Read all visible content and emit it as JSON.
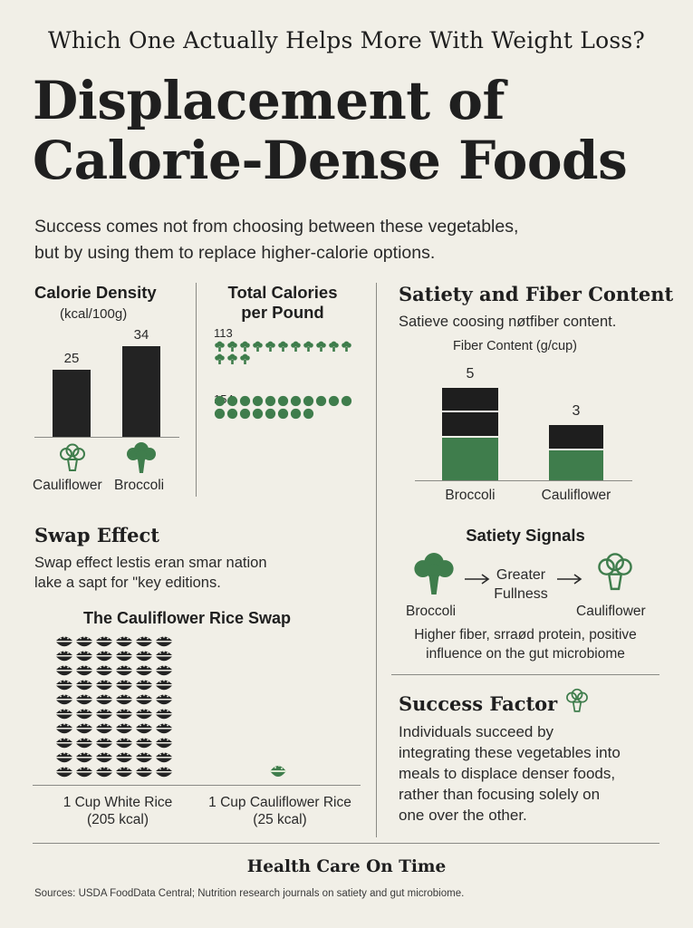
{
  "header": {
    "kicker": "Which One Actually Helps More With Weight Loss?",
    "title_line1": "Displacement of",
    "title_line2": "Calorie-Dense Foods",
    "intro_line1": "Success comes not from choosing between these vegetables,",
    "intro_line2": "but by using them to replace higher-calorie options."
  },
  "calorie_density": {
    "title": "Calorie Density",
    "unit": "(kcal/100g)",
    "bars": [
      {
        "label": "Cauliflower",
        "value": 25,
        "value_label": "25"
      },
      {
        "label": "Broccoli",
        "value": 34,
        "value_label": "34"
      }
    ]
  },
  "total_calories": {
    "title_line1": "Total Calories",
    "title_line2": "per Pound",
    "rows": [
      {
        "value": 113,
        "value_label": "113",
        "icon": "cauliflower-icon"
      },
      {
        "value": 154,
        "value_label": "154",
        "icon": "broccoli-icon"
      }
    ]
  },
  "satiety_fiber": {
    "title": "Satiety and Fiber Content",
    "subtitle": "Satieve coosing nøtfiber content.",
    "chart_title": "Fiber Content (g/cup)",
    "bars": [
      {
        "label": "Broccoli",
        "value": 5,
        "value_label": "5"
      },
      {
        "label": "Cauliflower",
        "value": 3,
        "value_label": "3"
      }
    ]
  },
  "satiety_signals": {
    "title": "Satiety Signals",
    "left_label": "Broccoli",
    "middle_line1": "Greater",
    "middle_line2": "Fullness",
    "right_label": "Cauliflower",
    "note_line1": "Higher fiber, srraød protein, positive",
    "note_line2": "influence on the gut microbiome"
  },
  "swap_effect": {
    "title": "Swap Effect",
    "text_line1": "Swap effect lestis eran smar nation",
    "text_line2": "lake a sapt for \"key editions.",
    "chart_title": "The Cauliflower Rice Swap",
    "items": [
      {
        "label_line1": "1 Cup White Rice",
        "label_line2": "(205 kcal)",
        "value": 205
      },
      {
        "label_line1": "1 Cup Cauliflower Rice",
        "label_line2": "(25 kcal)",
        "value": 25
      }
    ]
  },
  "success_factor": {
    "title": "Success Factor",
    "text_lines": [
      "Individuals succeed by",
      "integrating these vegetables into",
      "meals to displace denser foods,",
      "rather than focusing solely on",
      "one over the other."
    ]
  },
  "footer": {
    "brand": "Health Care On Time",
    "sources": "Sources: USDA FoodData Central; Nutrition research journals on satiety and gut microbiome."
  },
  "colors": {
    "background": "#f1efe7",
    "dark": "#232323",
    "green": "#3f7d4c"
  },
  "chart_data": [
    {
      "type": "bar",
      "title": "Calorie Density",
      "ylabel": "(kcal/100g)",
      "categories": [
        "Cauliflower",
        "Broccoli"
      ],
      "values": [
        25,
        34
      ]
    },
    {
      "type": "bar",
      "title": "Total Calories per Pound",
      "categories": [
        "Cauliflower",
        "Broccoli"
      ],
      "values": [
        113,
        154
      ]
    },
    {
      "type": "bar",
      "title": "Fiber Content (g/cup)",
      "categories": [
        "Broccoli",
        "Cauliflower"
      ],
      "values": [
        5,
        3
      ]
    },
    {
      "type": "bar",
      "title": "The Cauliflower Rice Swap",
      "categories": [
        "1 Cup White Rice",
        "1 Cup Cauliflower Rice"
      ],
      "values": [
        205,
        25
      ]
    }
  ]
}
